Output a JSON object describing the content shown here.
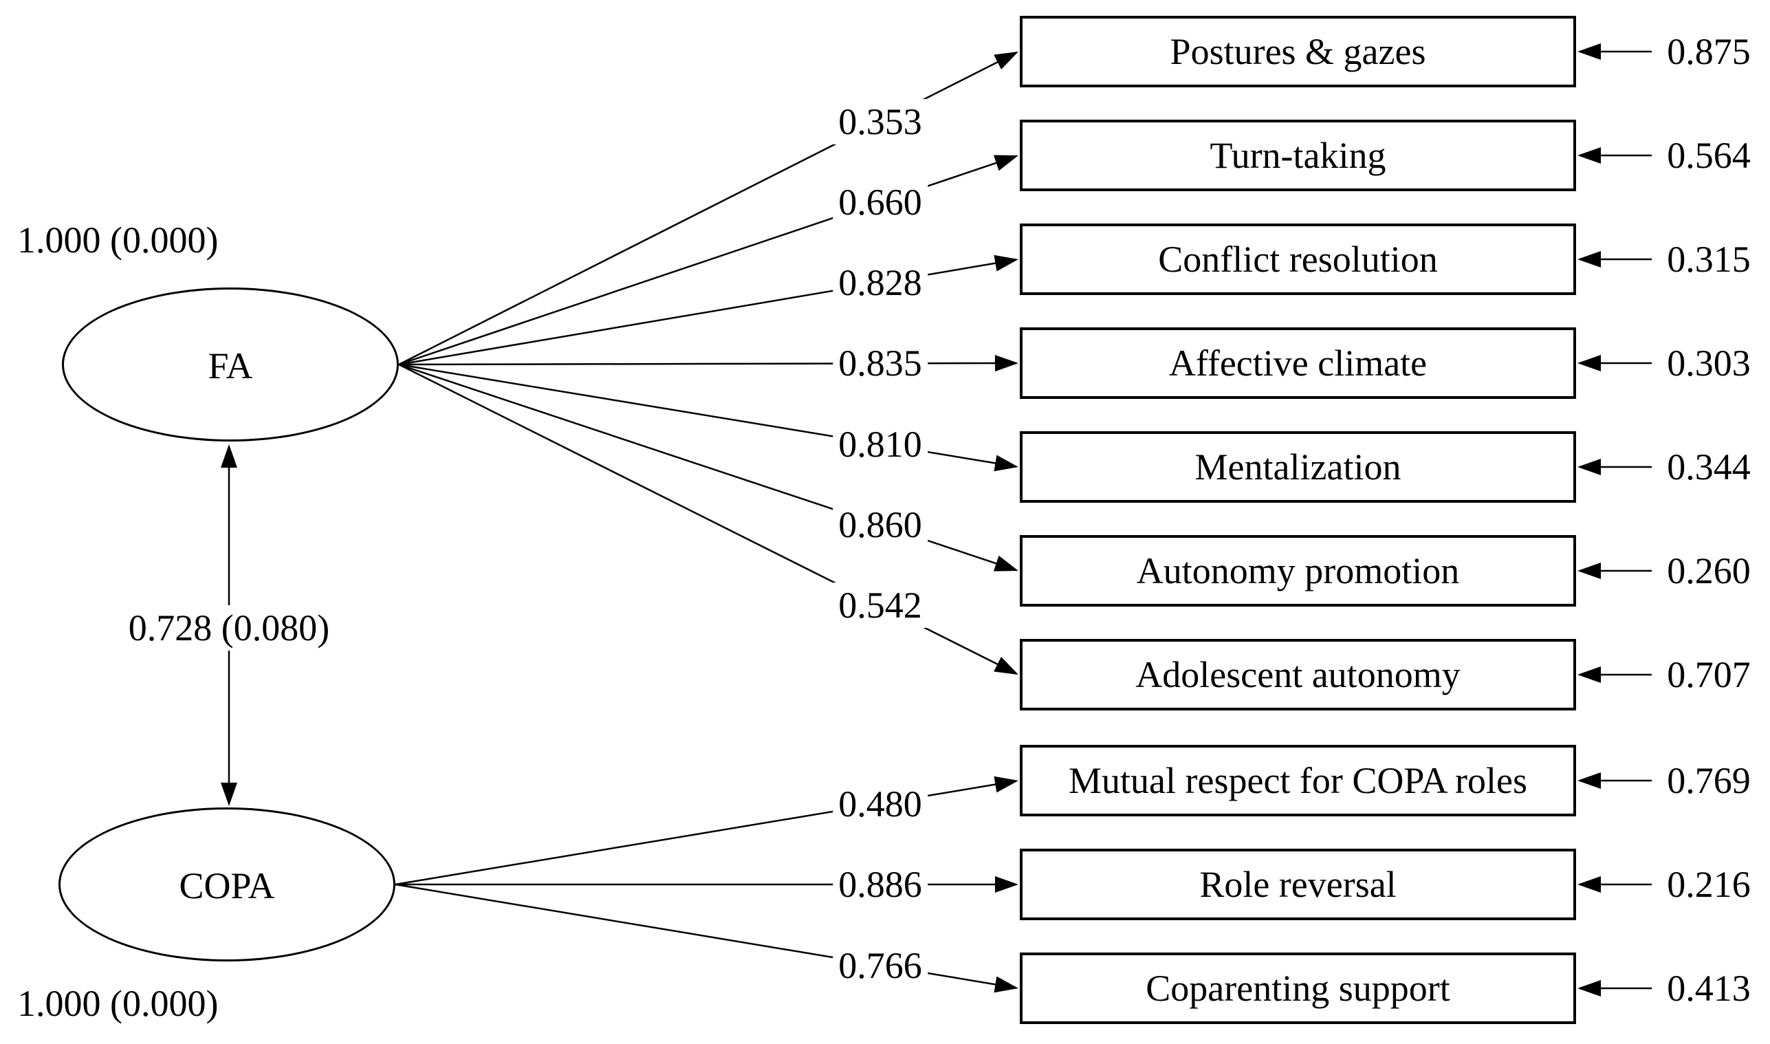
{
  "diagram": {
    "background_color": "#ffffff",
    "line_color": "#000000",
    "latents": [
      {
        "label": "FA",
        "variance": "1.000 (0.000)"
      },
      {
        "label": "COPA",
        "variance": "1.000 (0.000)"
      }
    ],
    "covariance": {
      "label": "0.728 (0.080)"
    },
    "indicators": [
      {
        "latent": "FA",
        "label": "Postures & gazes",
        "loading": "0.353",
        "residual": "0.875"
      },
      {
        "latent": "FA",
        "label": "Turn-taking",
        "loading": "0.660",
        "residual": "0.564"
      },
      {
        "latent": "FA",
        "label": "Conflict resolution",
        "loading": "0.828",
        "residual": "0.315"
      },
      {
        "latent": "FA",
        "label": "Affective climate",
        "loading": "0.835",
        "residual": "0.303"
      },
      {
        "latent": "FA",
        "label": "Mentalization",
        "loading": "0.810",
        "residual": "0.344"
      },
      {
        "latent": "FA",
        "label": "Autonomy promotion",
        "loading": "0.860",
        "residual": "0.260"
      },
      {
        "latent": "FA",
        "label": "Adolescent autonomy",
        "loading": "0.542",
        "residual": "0.707"
      },
      {
        "latent": "COPA",
        "label": "Mutual respect for COPA roles",
        "loading": "0.480",
        "residual": "0.769"
      },
      {
        "latent": "COPA",
        "label": "Role reversal",
        "loading": "0.886",
        "residual": "0.216"
      },
      {
        "latent": "COPA",
        "label": "Coparenting support",
        "loading": "0.766",
        "residual": "0.413"
      }
    ]
  }
}
